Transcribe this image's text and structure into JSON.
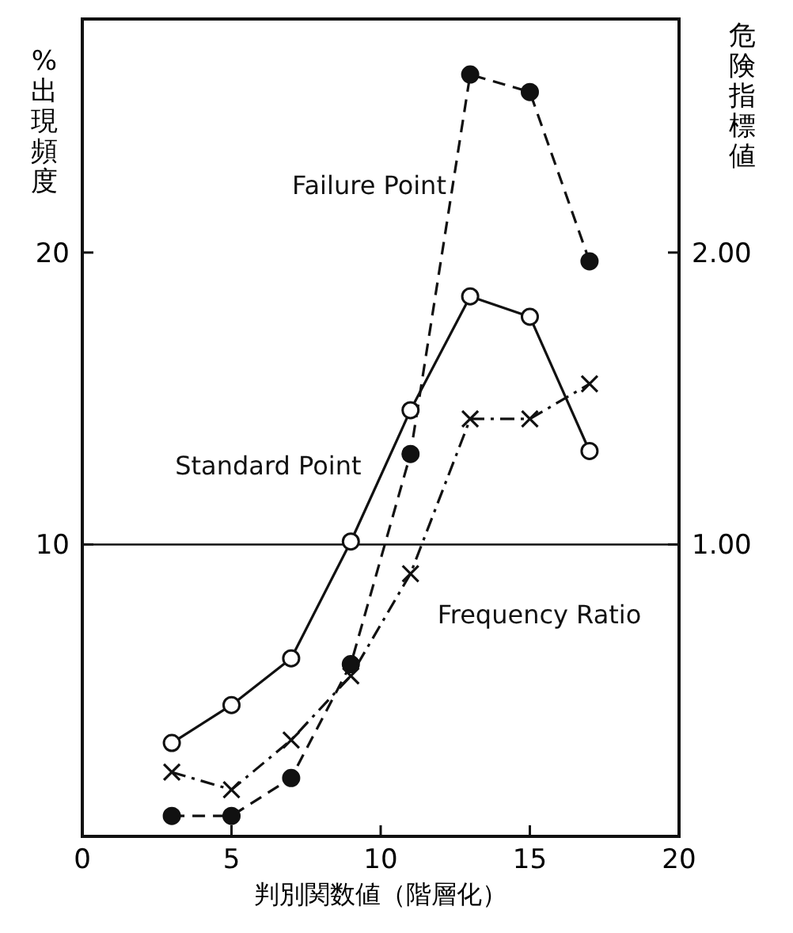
{
  "chart_data": {
    "type": "line",
    "xlabel": "判別関数値（階層化）",
    "ylabel": "%出現頻度",
    "y2label": "危険指標値",
    "x": [
      3,
      5,
      7,
      9,
      11,
      13,
      15,
      17
    ],
    "series": [
      {
        "name": "Failure Point",
        "color": "#111111",
        "marker": "circle",
        "line_style": "dashed",
        "values": [
          0.7,
          0.7,
          2.0,
          5.9,
          13.1,
          26.1,
          25.5,
          19.7
        ]
      },
      {
        "name": "Standard Point",
        "color": "#111111",
        "marker": "circle",
        "line_style": "solid",
        "values": [
          3.2,
          4.5,
          6.1,
          10.1,
          14.6,
          18.5,
          17.8,
          13.2
        ]
      },
      {
        "name": "Frequency Ratio",
        "color": "#111111",
        "marker": "cross",
        "line_style": "dashdot",
        "axis": "y2",
        "values": [
          0.22,
          0.16,
          0.33,
          0.55,
          0.9,
          1.43,
          1.43,
          1.55
        ]
      }
    ],
    "xlim": [
      0,
      20
    ],
    "xticks": [
      0,
      5,
      10,
      15,
      20
    ],
    "ylim": [
      0,
      28
    ],
    "yticks": [
      10,
      20
    ],
    "y2lim": [
      0,
      2.8
    ],
    "y2ticks": [
      {
        "value": 1,
        "label": "1.00"
      },
      {
        "value": 2,
        "label": "2.00"
      }
    ],
    "ref_lines": [
      {
        "axis": "y",
        "value": 10,
        "color": "#111111"
      }
    ],
    "grid": false
  }
}
